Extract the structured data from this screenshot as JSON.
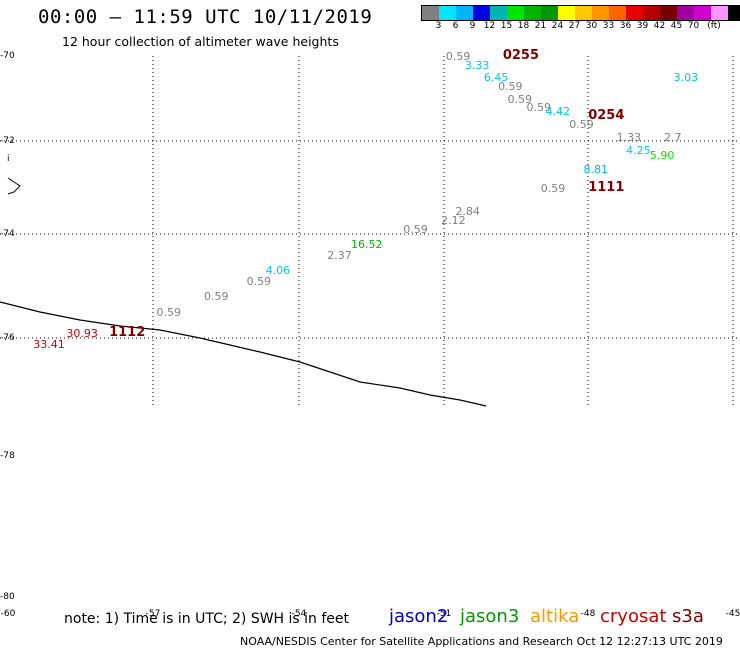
{
  "header": {
    "title": "00:00 – 11:59 UTC 10/11/2019",
    "subtitle": "12 hour collection of altimeter wave heights"
  },
  "colorbar": {
    "unit": "(ft)",
    "colors": [
      "#808080",
      "#00e6ff",
      "#00b4ff",
      "#0000e6",
      "#00b4b4",
      "#00e600",
      "#00b400",
      "#009600",
      "#ffff00",
      "#ffc800",
      "#ff9600",
      "#ff6400",
      "#e60000",
      "#b40000",
      "#780000",
      "#a000a0",
      "#d000d0",
      "#ff96ff",
      "#000000"
    ],
    "ticks": [
      "3",
      "6",
      "9",
      "12",
      "15",
      "18",
      "21",
      "24",
      "27",
      "30",
      "33",
      "36",
      "39",
      "42",
      "45",
      "70"
    ]
  },
  "map": {
    "lat_labels": [
      "-70",
      "-72",
      "-74",
      "-76",
      "-78",
      "-80"
    ],
    "lon_labels": [
      "-60",
      "-57",
      "-54",
      "-51",
      "-48",
      "-45"
    ],
    "tick_mark": "i"
  },
  "wave_heights": [
    {
      "v": "0.59",
      "c": "#808080",
      "lon": -50.6,
      "lat": -70.0
    },
    {
      "v": "3.33",
      "c": "#00c8e6",
      "lon": -50.2,
      "lat": -70.2
    },
    {
      "v": "6.45",
      "c": "#00c8e6",
      "lon": -49.8,
      "lat": -70.5
    },
    {
      "v": "0.59",
      "c": "#808080",
      "lon": -49.5,
      "lat": -70.7
    },
    {
      "v": "0.59",
      "c": "#808080",
      "lon": -49.3,
      "lat": -71.0
    },
    {
      "v": "0.59",
      "c": "#808080",
      "lon": -48.9,
      "lat": -71.2
    },
    {
      "v": "4.42",
      "c": "#00c8e6",
      "lon": -48.5,
      "lat": -71.3
    },
    {
      "v": "0.59",
      "c": "#808080",
      "lon": -48.0,
      "lat": -71.6
    },
    {
      "v": "3.03",
      "c": "#00c8e6",
      "lon": -45.8,
      "lat": -70.5
    },
    {
      "v": "1.33",
      "c": "#808080",
      "lon": -47.0,
      "lat": -71.9
    },
    {
      "v": "2.7",
      "c": "#808080",
      "lon": -46.0,
      "lat": -71.9
    },
    {
      "v": "4.25",
      "c": "#00c8e6",
      "lon": -46.8,
      "lat": -72.2
    },
    {
      "v": "5.90",
      "c": "#00e600",
      "lon": -46.3,
      "lat": -72.3
    },
    {
      "v": "8.81",
      "c": "#00b4ff",
      "lon": -47.7,
      "lat": -72.6
    },
    {
      "v": "0.59",
      "c": "#808080",
      "lon": -48.6,
      "lat": -73.0
    },
    {
      "v": "2.84",
      "c": "#808080",
      "lon": -50.4,
      "lat": -73.5
    },
    {
      "v": "2.12",
      "c": "#808080",
      "lon": -50.7,
      "lat": -73.7
    },
    {
      "v": "0.59",
      "c": "#808080",
      "lon": -51.5,
      "lat": -73.9
    },
    {
      "v": "16.52",
      "c": "#00b400",
      "lon": -52.6,
      "lat": -74.2
    },
    {
      "v": "2.37",
      "c": "#808080",
      "lon": -53.1,
      "lat": -74.4
    },
    {
      "v": "4.06",
      "c": "#00c8e6",
      "lon": -54.4,
      "lat": -74.7
    },
    {
      "v": "0.59",
      "c": "#808080",
      "lon": -54.8,
      "lat": -74.9
    },
    {
      "v": "0.59",
      "c": "#808080",
      "lon": -55.7,
      "lat": -75.2
    },
    {
      "v": "0.59",
      "c": "#808080",
      "lon": -56.7,
      "lat": -75.5
    },
    {
      "v": "30.93",
      "c": "#cc0000",
      "lon": -58.6,
      "lat": -75.9
    },
    {
      "v": "33.41",
      "c": "#cc0000",
      "lon": -59.3,
      "lat": -76.1
    }
  ],
  "pass_labels": [
    {
      "t": "0255",
      "lon": -49.4,
      "lat": -70.0
    },
    {
      "t": "0254",
      "lon": -47.6,
      "lat": -71.4
    },
    {
      "t": "1111",
      "lon": -47.6,
      "lat": -73.0
    },
    {
      "t": "1112",
      "lon": -57.7,
      "lat": -75.9
    }
  ],
  "footer": {
    "note": "note:  1) Time is in UTC;  2) SWH is in feet",
    "satellites": [
      {
        "name": "jason2",
        "color": "#0000cc"
      },
      {
        "name": "jason3",
        "color": "#009900"
      },
      {
        "name": "altika",
        "color": "#ff9900"
      },
      {
        "name": "cryosat",
        "color": "#cc0000"
      },
      {
        "name": "s3a",
        "color": "#800000"
      }
    ],
    "credit": "NOAA/NESDIS Center for Satellite Applications and Research     Oct 12 12:27:13 UTC 2019"
  }
}
